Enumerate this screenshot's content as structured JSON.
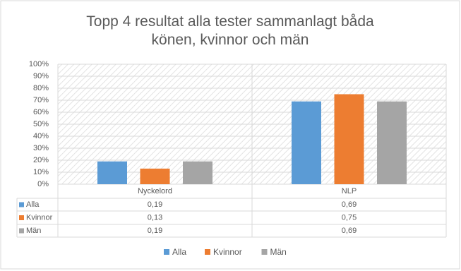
{
  "chart_data": {
    "type": "bar",
    "title": "Topp 4 resultat alla tester sammanlagt båda könen, kvinnor och män",
    "categories": [
      "Nyckelord",
      "NLP"
    ],
    "series": [
      {
        "name": "Alla",
        "color": "#5b9bd5",
        "values": [
          0.19,
          0.69
        ],
        "value_labels": [
          "0,19",
          "0,69"
        ]
      },
      {
        "name": "Kvinnor",
        "color": "#ed7d31",
        "values": [
          0.13,
          0.75
        ],
        "value_labels": [
          "0,13",
          "0,75"
        ]
      },
      {
        "name": "Män",
        "color": "#a5a5a5",
        "values": [
          0.19,
          0.69
        ],
        "value_labels": [
          "0,19",
          "0,69"
        ]
      }
    ],
    "ylim": [
      0,
      1
    ],
    "yticks": [
      {
        "value": 0,
        "label": "0%"
      },
      {
        "value": 0.1,
        "label": "10%"
      },
      {
        "value": 0.2,
        "label": "20%"
      },
      {
        "value": 0.3,
        "label": "30%"
      },
      {
        "value": 0.4,
        "label": "40%"
      },
      {
        "value": 0.5,
        "label": "50%"
      },
      {
        "value": 0.6,
        "label": "60%"
      },
      {
        "value": 0.7,
        "label": "70%"
      },
      {
        "value": 0.8,
        "label": "80%"
      },
      {
        "value": 0.9,
        "label": "90%"
      },
      {
        "value": 1,
        "label": "100%"
      }
    ],
    "grid": true,
    "legend": "bottom"
  }
}
